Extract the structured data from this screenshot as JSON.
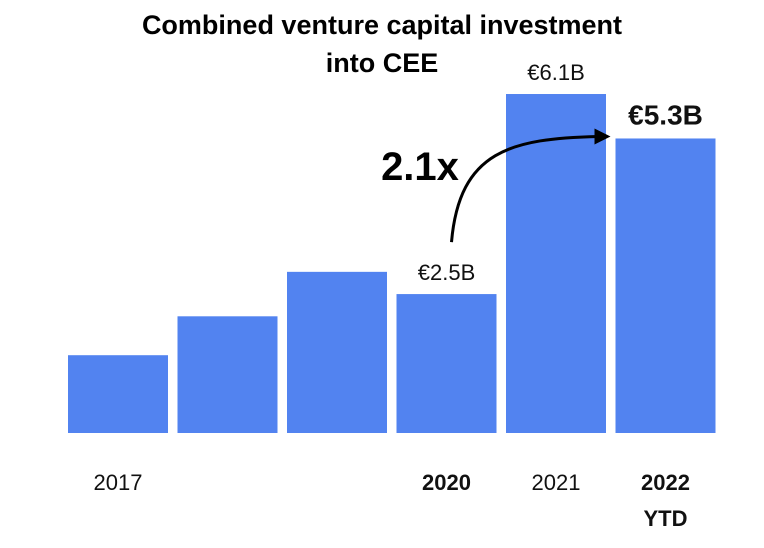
{
  "chart_data": {
    "type": "bar",
    "title_line1": "Combined venture capital investment",
    "title_line2": "into CEE",
    "categories": [
      "2017",
      "",
      "",
      "2020",
      "2021",
      "2022"
    ],
    "category_sublabels": [
      "",
      "",
      "",
      "",
      "",
      "YTD"
    ],
    "bold_categories": [
      false,
      false,
      false,
      true,
      false,
      true
    ],
    "values": [
      1.4,
      2.1,
      2.9,
      2.5,
      6.1,
      5.3
    ],
    "value_labels": [
      "",
      "",
      "",
      "€2.5B",
      "€6.1B",
      "€5.3B"
    ],
    "bold_value_labels": [
      false,
      false,
      false,
      false,
      false,
      true
    ],
    "ylim": [
      0,
      7
    ],
    "color": "#5283F0",
    "annotation": {
      "text": "2.1x",
      "from_index": 3,
      "to_index": 5
    }
  }
}
